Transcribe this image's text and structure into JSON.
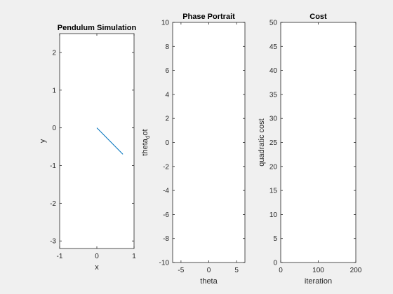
{
  "chart_data": [
    {
      "type": "line",
      "title": "Pendulum Simulation",
      "xlabel": "x",
      "ylabel": "y",
      "xlim": [
        -1,
        1
      ],
      "ylim": [
        -3.2,
        2.5
      ],
      "xticks": [
        -1,
        0,
        1
      ],
      "yticks": [
        -3,
        -2,
        -1,
        0,
        1,
        2
      ],
      "grid": false,
      "series": [
        {
          "x": [
            0,
            0.7
          ],
          "y": [
            0,
            -0.7
          ],
          "color": "#0072bd"
        }
      ]
    },
    {
      "type": "line",
      "title": "Phase Portrait",
      "xlabel": "theta",
      "ylabel": "theta_dot",
      "ylabel_main": "theta",
      "ylabel_sub": "d",
      "ylabel_rest": "ot",
      "xlim": [
        -6.5,
        6.5
      ],
      "ylim": [
        -10,
        10
      ],
      "xticks": [
        -5,
        0,
        5
      ],
      "yticks": [
        -10,
        -8,
        -6,
        -4,
        -2,
        0,
        2,
        4,
        6,
        8,
        10
      ],
      "grid": false,
      "series": []
    },
    {
      "type": "line",
      "title": "Cost",
      "xlabel": "iteration",
      "ylabel": "quadratic cost",
      "xlim": [
        0,
        200
      ],
      "ylim": [
        0,
        50
      ],
      "xticks": [
        0,
        100,
        200
      ],
      "yticks": [
        0,
        5,
        10,
        15,
        20,
        25,
        30,
        35,
        40,
        45,
        50
      ],
      "grid": false,
      "series": []
    }
  ],
  "colors": {
    "figure_bg": "#f0f0f0",
    "axes_bg": "#ffffff",
    "axes_line": "#262626",
    "series": "#0072bd"
  }
}
